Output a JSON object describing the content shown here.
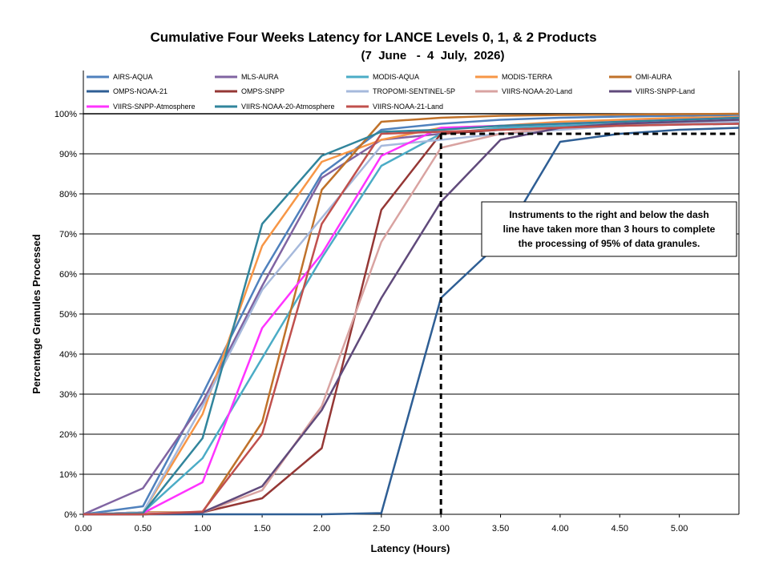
{
  "chart_data": {
    "type": "line",
    "title": "Cumulative Four Weeks Latency  for LANCE Levels 0, 1, & 2 Products",
    "subtitle": "(7  June   -  4  July,  2026)",
    "xlabel": "Latency (Hours)",
    "ylabel": "Percentage Granules Processed",
    "xlim": [
      0,
      5.5
    ],
    "ylim": [
      0,
      100
    ],
    "x_ticks": [
      "0.00",
      "0.50",
      "1.00",
      "1.50",
      "2.00",
      "2.50",
      "3.00",
      "3.50",
      "4.00",
      "4.50",
      "5.00"
    ],
    "x_tick_values": [
      0,
      0.5,
      1,
      1.5,
      2,
      2.5,
      3,
      3.5,
      4,
      4.5,
      5
    ],
    "y_ticks": [
      "0%",
      "10%",
      "20%",
      "30%",
      "40%",
      "50%",
      "60%",
      "70%",
      "80%",
      "90%",
      "100%"
    ],
    "y_tick_values": [
      0,
      10,
      20,
      30,
      40,
      50,
      60,
      70,
      80,
      90,
      100
    ],
    "grid": "horizontal",
    "legend_position": "top",
    "x": [
      0,
      0.5,
      1,
      1.5,
      2,
      2.5,
      3,
      3.5,
      4,
      4.5,
      5,
      5.5
    ],
    "series": [
      {
        "name": "AIRS-AQUA",
        "color": "#4f81bd",
        "values": [
          0,
          2,
          30,
          60,
          85,
          96,
          97.5,
          98.5,
          99,
          99.3,
          99.5,
          99.7
        ]
      },
      {
        "name": "MLS-AURA",
        "color": "#8064a2",
        "values": [
          0,
          6.5,
          28,
          57,
          84,
          93.5,
          95,
          96,
          96.5,
          97,
          97.3,
          97.5
        ]
      },
      {
        "name": "MODIS-AQUA",
        "color": "#4bacc6",
        "values": [
          0,
          0.5,
          14,
          39,
          64,
          87,
          95,
          96.5,
          97,
          97.5,
          98,
          98.5
        ]
      },
      {
        "name": "MODIS-TERRA",
        "color": "#f79646",
        "values": [
          0,
          0.5,
          25,
          67,
          88,
          93.5,
          96.5,
          97,
          98,
          98.5,
          99,
          99.2
        ]
      },
      {
        "name": "OMI-AURA",
        "color": "#c0722a",
        "values": [
          0,
          0.5,
          0.5,
          23,
          81,
          98,
          99,
          99.5,
          99.7,
          99.8,
          99.9,
          100
        ]
      },
      {
        "name": "OMPS-NOAA-21",
        "color": "#2e5e94",
        "values": [
          0,
          0,
          0,
          0,
          0,
          0.3,
          54,
          68,
          93,
          95,
          96,
          96.5
        ]
      },
      {
        "name": "OMPS-SNPP",
        "color": "#953735",
        "values": [
          0,
          0,
          0.5,
          4,
          16.5,
          76,
          95,
          96,
          96.5,
          97,
          97.5,
          97.8
        ]
      },
      {
        "name": "TROPOMI-SENTINEL-5P",
        "color": "#a6b9dc",
        "values": [
          0,
          0.5,
          27,
          56,
          74,
          92,
          93.5,
          95,
          96,
          97,
          97.5,
          98
        ]
      },
      {
        "name": "VIIRS-NOAA-20-Land",
        "color": "#d9a3a1",
        "values": [
          0,
          0.3,
          0.5,
          6,
          27,
          68,
          91.5,
          95,
          96.5,
          97.5,
          98,
          98.5
        ]
      },
      {
        "name": "VIIRS-SNPP-Land",
        "color": "#604a7b",
        "values": [
          0,
          0,
          0.5,
          7,
          26,
          54,
          78,
          93.5,
          96.5,
          97.5,
          98,
          98.5
        ]
      },
      {
        "name": "VIIRS-SNPP-Atmosphere",
        "color": "#ff33ff",
        "values": [
          0,
          0.3,
          8,
          46.5,
          65,
          89.5,
          96.5,
          97,
          97.5,
          98,
          98.5,
          99
        ]
      },
      {
        "name": "VIIRS-NOAA-20-Atmosphere",
        "color": "#31859c",
        "values": [
          0,
          0.3,
          19,
          72.5,
          89.5,
          95.5,
          96,
          97,
          97.5,
          98,
          98.5,
          99
        ]
      },
      {
        "name": "VIIRS-NOAA-21-Land",
        "color": "#c0504d",
        "values": [
          0,
          0,
          0.7,
          20,
          72.5,
          95,
          95.5,
          96,
          96.5,
          97,
          97.3,
          97.5
        ]
      }
    ],
    "reference_line": {
      "x": 3,
      "y": 95
    },
    "annotation": [
      "Instruments to the right and below the dash",
      "line have taken more than 3 hours to complete",
      "the processing of 95% of data granules."
    ]
  }
}
